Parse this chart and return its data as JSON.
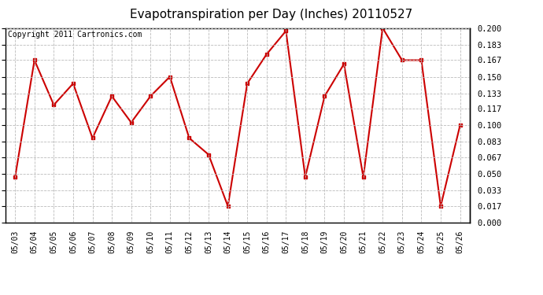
{
  "title": "Evapotranspiration per Day (Inches) 20110527",
  "copyright": "Copyright 2011 Cartronics.com",
  "dates": [
    "05/03",
    "05/04",
    "05/05",
    "05/06",
    "05/07",
    "05/08",
    "05/09",
    "05/10",
    "05/11",
    "05/12",
    "05/13",
    "05/14",
    "05/15",
    "05/16",
    "05/17",
    "05/18",
    "05/19",
    "05/20",
    "05/21",
    "05/22",
    "05/23",
    "05/24",
    "05/25",
    "05/26"
  ],
  "values": [
    0.047,
    0.167,
    0.121,
    0.143,
    0.087,
    0.13,
    0.103,
    0.13,
    0.15,
    0.087,
    0.07,
    0.017,
    0.143,
    0.173,
    0.197,
    0.047,
    0.13,
    0.163,
    0.047,
    0.2,
    0.167,
    0.167,
    0.017,
    0.1
  ],
  "line_color": "#cc0000",
  "marker": "s",
  "marker_size": 3,
  "background_color": "#ffffff",
  "plot_bg_color": "#ffffff",
  "grid_color": "#bbbbbb",
  "ylim": [
    0.0,
    0.2
  ],
  "yticks": [
    0.0,
    0.017,
    0.033,
    0.05,
    0.067,
    0.083,
    0.1,
    0.117,
    0.133,
    0.15,
    0.167,
    0.183,
    0.2
  ],
  "title_fontsize": 11,
  "copyright_fontsize": 7
}
